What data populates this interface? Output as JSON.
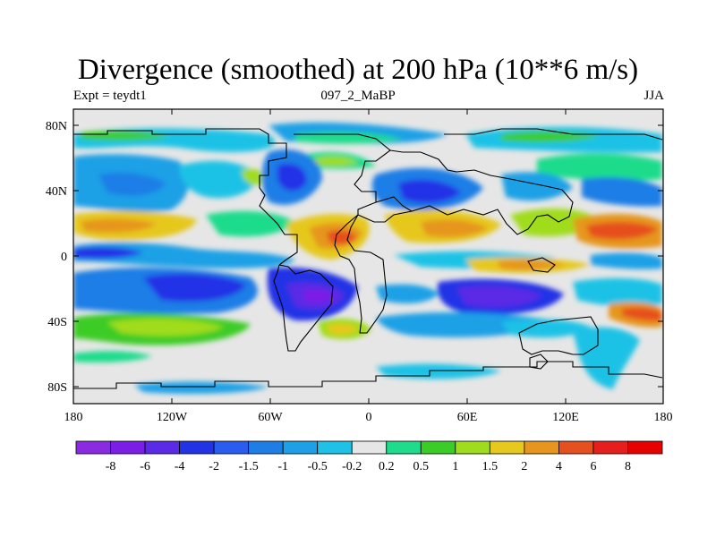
{
  "title": "Divergence (smoothed) at 200 hPa (10**6 m/s)",
  "subtitle_left": "Expt = teydt1",
  "subtitle_center": "097_2_MaBP",
  "subtitle_right": "JJA",
  "lat_labels": [
    "80N",
    "40N",
    "0",
    "40S",
    "80S"
  ],
  "lon_labels": [
    "180",
    "120W",
    "60W",
    "0",
    "60E",
    "120E",
    "180"
  ],
  "colorbar": {
    "labels": [
      "-8",
      "-6",
      "-4",
      "-2",
      "-1.5",
      "-1",
      "-0.5",
      "-0.2",
      "0.2",
      "0.5",
      "1",
      "1.5",
      "2",
      "4",
      "6",
      "8"
    ],
    "colors": [
      "#8a2be2",
      "#7b1fe6",
      "#5a2ae6",
      "#2233e6",
      "#2a5cf0",
      "#1e7ee6",
      "#1ea0e6",
      "#1fc2e6",
      "#e6e6e6",
      "#1fdc8c",
      "#3ccc28",
      "#a0dc1e",
      "#e6c81e",
      "#e6961e",
      "#e6501e",
      "#e61e1e",
      "#e60000"
    ]
  },
  "colors": {
    "background": "#e6e6e6",
    "coast": "#000000"
  },
  "map_data": {
    "projection": "cylindrical-equidistant",
    "lon_range": [
      -180,
      180
    ],
    "lat_range": [
      -90,
      90
    ]
  }
}
